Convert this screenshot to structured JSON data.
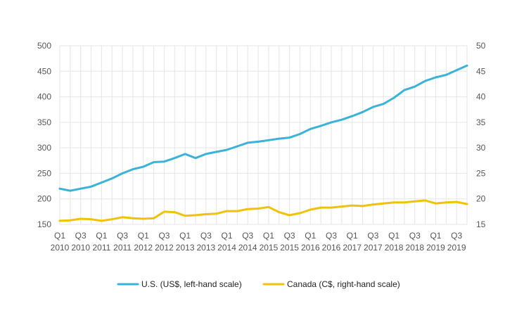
{
  "chart_data": {
    "type": "line",
    "title": "",
    "x_axis": {
      "ticks": [
        {
          "index": 0,
          "label": "Q1",
          "year": "2010"
        },
        {
          "index": 2,
          "label": "Q3",
          "year": "2010"
        },
        {
          "index": 4,
          "label": "Q1",
          "year": "2011"
        },
        {
          "index": 6,
          "label": "Q3",
          "year": "2011"
        },
        {
          "index": 8,
          "label": "Q1",
          "year": "2012"
        },
        {
          "index": 10,
          "label": "Q3",
          "year": "2012"
        },
        {
          "index": 12,
          "label": "Q1",
          "year": "2013"
        },
        {
          "index": 14,
          "label": "Q3",
          "year": "2013"
        },
        {
          "index": 16,
          "label": "Q1",
          "year": "2014"
        },
        {
          "index": 18,
          "label": "Q3",
          "year": "2014"
        },
        {
          "index": 20,
          "label": "Q1",
          "year": "2015"
        },
        {
          "index": 22,
          "label": "Q3",
          "year": "2015"
        },
        {
          "index": 24,
          "label": "Q1",
          "year": "2016"
        },
        {
          "index": 26,
          "label": "Q3",
          "year": "2016"
        },
        {
          "index": 28,
          "label": "Q1",
          "year": "2017"
        },
        {
          "index": 30,
          "label": "Q3",
          "year": "2017"
        },
        {
          "index": 32,
          "label": "Q1",
          "year": "2018"
        },
        {
          "index": 34,
          "label": "Q3",
          "year": "2018"
        },
        {
          "index": 36,
          "label": "Q1",
          "year": "2019"
        },
        {
          "index": 38,
          "label": "Q3",
          "year": "2019"
        }
      ]
    },
    "y_left": {
      "min": 150,
      "max": 500,
      "ticks": [
        150,
        200,
        250,
        300,
        350,
        400,
        450,
        500
      ]
    },
    "y_right": {
      "min": 15,
      "max": 50,
      "ticks": [
        15,
        20,
        25,
        30,
        35,
        40,
        45,
        50
      ]
    },
    "grid": true,
    "legend_position": "bottom",
    "series": [
      {
        "name": "U.S. (US$, left-hand scale)",
        "axis": "left",
        "color": "#3bb3d8",
        "x_start": "Q1 2010",
        "values": [
          220,
          216,
          220,
          224,
          232,
          240,
          250,
          258,
          263,
          272,
          273,
          280,
          288,
          280,
          288,
          292,
          296,
          303,
          310,
          312,
          315,
          318,
          320,
          327,
          337,
          343,
          350,
          355,
          362,
          370,
          380,
          386,
          398,
          413,
          420,
          431,
          438,
          443,
          452,
          461
        ]
      },
      {
        "name": "Canada (C$, right-hand scale)",
        "axis": "right",
        "color": "#f0c20a",
        "x_start": "Q1 2010",
        "values": [
          15.7,
          15.8,
          16.1,
          16.0,
          15.7,
          16.0,
          16.4,
          16.2,
          16.1,
          16.2,
          17.5,
          17.4,
          16.7,
          16.8,
          17.0,
          17.1,
          17.6,
          17.6,
          18.0,
          18.1,
          18.4,
          17.4,
          16.8,
          17.2,
          17.9,
          18.3,
          18.3,
          18.5,
          18.7,
          18.6,
          18.9,
          19.1,
          19.3,
          19.3,
          19.5,
          19.7,
          19.1,
          19.3,
          19.4,
          19.0
        ]
      }
    ]
  }
}
